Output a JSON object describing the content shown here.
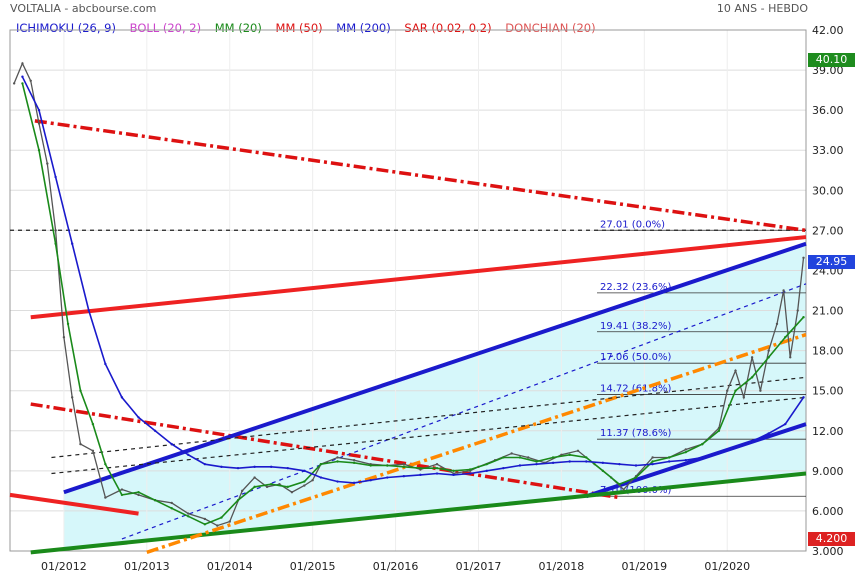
{
  "header": {
    "title": "VOLTALIA - abcbourse.com",
    "period": "10 ANS - HEBDO"
  },
  "legend": [
    {
      "label": "ICHIMOKU (26, 9)",
      "color": "#1a1acc"
    },
    {
      "label": "BOLL (20, 2)",
      "color": "#cc44cc"
    },
    {
      "label": "MM (20)",
      "color": "#1a8a1a"
    },
    {
      "label": "MM (50)",
      "color": "#dd1111"
    },
    {
      "label": "MM (200)",
      "color": "#1a1acc"
    },
    {
      "label": "SAR (0.02, 0.2)",
      "color": "#dd1111"
    },
    {
      "label": "DONCHIAN (20)",
      "color": "#dd5555"
    }
  ],
  "price_labels": {
    "high": "40.10",
    "last": "24.95",
    "low": "4.200"
  },
  "chart_data": {
    "type": "line",
    "title": "VOLTALIA - abcbourse.com",
    "period": "10 ANS - HEBDO",
    "y_ticks": [
      "42.00",
      "39.00",
      "36.00",
      "33.00",
      "30.00",
      "27.00",
      "24.00",
      "21.00",
      "18.00",
      "15.00",
      "12.00",
      "9.000",
      "6.000",
      "3.000"
    ],
    "x_ticks": [
      "01/2012",
      "01/2013",
      "01/2014",
      "01/2015",
      "01/2016",
      "01/2017",
      "01/2018",
      "01/2019",
      "01/2020"
    ],
    "ylim": [
      3,
      42
    ],
    "xlim": [
      2011.35,
      2020.95
    ],
    "series": [
      {
        "name": "",
        "values": [
          [
            2011.4,
            38
          ],
          [
            2011.5,
            39.5
          ],
          [
            2011.6,
            38.2
          ],
          [
            2011.7,
            35
          ],
          [
            2011.8,
            32
          ],
          [
            2011.9,
            27
          ],
          [
            2012.0,
            19
          ],
          [
            2012.1,
            14.5
          ],
          [
            2012.2,
            11
          ],
          [
            2012.35,
            10.5
          ],
          [
            2012.5,
            7
          ],
          [
            2012.7,
            7.6
          ],
          [
            2012.9,
            7.2
          ],
          [
            2013.1,
            6.8
          ],
          [
            2013.3,
            6.6
          ],
          [
            2013.5,
            5.8
          ],
          [
            2013.7,
            5.4
          ],
          [
            2013.85,
            4.9
          ],
          [
            2014.0,
            5.2
          ],
          [
            2014.15,
            7.5
          ],
          [
            2014.3,
            8.5
          ],
          [
            2014.45,
            7.8
          ],
          [
            2014.6,
            8
          ],
          [
            2014.75,
            7.4
          ],
          [
            2014.9,
            7.9
          ],
          [
            2015.0,
            8.3
          ],
          [
            2015.1,
            9.5
          ],
          [
            2015.3,
            10
          ],
          [
            2015.5,
            9.8
          ],
          [
            2015.7,
            9.5
          ],
          [
            2015.9,
            9.4
          ],
          [
            2016.1,
            9.5
          ],
          [
            2016.3,
            9.1
          ],
          [
            2016.5,
            9.5
          ],
          [
            2016.7,
            8.8
          ],
          [
            2016.9,
            9
          ],
          [
            2017.0,
            9.3
          ],
          [
            2017.2,
            9.8
          ],
          [
            2017.4,
            10.3
          ],
          [
            2017.6,
            10
          ],
          [
            2017.8,
            9.6
          ],
          [
            2018.0,
            10.2
          ],
          [
            2018.2,
            10.5
          ],
          [
            2018.4,
            9.5
          ],
          [
            2018.6,
            8.5
          ],
          [
            2018.75,
            7.6
          ],
          [
            2018.9,
            8.6
          ],
          [
            2019.1,
            10
          ],
          [
            2019.3,
            10
          ],
          [
            2019.5,
            10.6
          ],
          [
            2019.7,
            11
          ],
          [
            2019.9,
            12.2
          ],
          [
            2020.0,
            15
          ],
          [
            2020.1,
            16.5
          ],
          [
            2020.2,
            14.5
          ],
          [
            2020.3,
            17.5
          ],
          [
            2020.4,
            15
          ],
          [
            2020.5,
            18
          ],
          [
            2020.6,
            20
          ],
          [
            2020.68,
            22.5
          ],
          [
            2020.76,
            17.5
          ],
          [
            2020.85,
            21
          ],
          [
            2020.92,
            24.95
          ]
        ],
        "color": "#555555"
      },
      {
        "name": "",
        "values": [
          [
            2011.5,
            38
          ],
          [
            2011.7,
            33
          ],
          [
            2011.9,
            26
          ],
          [
            2012.05,
            20
          ],
          [
            2012.2,
            15
          ],
          [
            2012.35,
            12.5
          ],
          [
            2012.5,
            9.5
          ],
          [
            2012.7,
            7.2
          ],
          [
            2012.9,
            7.4
          ],
          [
            2013.1,
            6.8
          ],
          [
            2013.3,
            6.2
          ],
          [
            2013.5,
            5.6
          ],
          [
            2013.7,
            5.0
          ],
          [
            2013.9,
            5.5
          ],
          [
            2014.1,
            6.8
          ],
          [
            2014.3,
            7.8
          ],
          [
            2014.5,
            8
          ],
          [
            2014.7,
            7.8
          ],
          [
            2014.9,
            8.2
          ],
          [
            2015.1,
            9.5
          ],
          [
            2015.3,
            9.7
          ],
          [
            2015.5,
            9.6
          ],
          [
            2015.7,
            9.4
          ],
          [
            2015.9,
            9.4
          ],
          [
            2016.1,
            9.3
          ],
          [
            2016.3,
            9.2
          ],
          [
            2016.5,
            9.2
          ],
          [
            2016.7,
            9
          ],
          [
            2016.9,
            9.1
          ],
          [
            2017.1,
            9.5
          ],
          [
            2017.3,
            10
          ],
          [
            2017.5,
            10
          ],
          [
            2017.7,
            9.7
          ],
          [
            2017.9,
            10
          ],
          [
            2018.1,
            10.2
          ],
          [
            2018.3,
            10
          ],
          [
            2018.5,
            9
          ],
          [
            2018.7,
            8
          ],
          [
            2018.9,
            8.5
          ],
          [
            2019.1,
            9.7
          ],
          [
            2019.3,
            10
          ],
          [
            2019.5,
            10.4
          ],
          [
            2019.7,
            11
          ],
          [
            2019.9,
            12
          ],
          [
            2020.1,
            15
          ],
          [
            2020.3,
            16
          ],
          [
            2020.5,
            17.5
          ],
          [
            2020.7,
            19
          ],
          [
            2020.92,
            20.5
          ]
        ],
        "color": "#1a8a1a"
      },
      {
        "name": "",
        "values": [
          [
            2011.5,
            38.5
          ],
          [
            2011.7,
            36
          ],
          [
            2011.9,
            31
          ],
          [
            2012.1,
            26
          ],
          [
            2012.3,
            21
          ],
          [
            2012.5,
            17
          ],
          [
            2012.7,
            14.5
          ],
          [
            2012.9,
            13
          ],
          [
            2013.1,
            12
          ],
          [
            2013.3,
            11
          ],
          [
            2013.5,
            10.2
          ],
          [
            2013.7,
            9.5
          ],
          [
            2013.9,
            9.3
          ],
          [
            2014.1,
            9.2
          ],
          [
            2014.3,
            9.3
          ],
          [
            2014.5,
            9.3
          ],
          [
            2014.7,
            9.2
          ],
          [
            2014.9,
            9
          ],
          [
            2015.1,
            8.5
          ],
          [
            2015.3,
            8.2
          ],
          [
            2015.5,
            8.1
          ],
          [
            2015.7,
            8.3
          ],
          [
            2015.9,
            8.5
          ],
          [
            2016.1,
            8.6
          ],
          [
            2016.3,
            8.7
          ],
          [
            2016.5,
            8.8
          ],
          [
            2016.7,
            8.7
          ],
          [
            2016.9,
            8.8
          ],
          [
            2017.1,
            9
          ],
          [
            2017.3,
            9.2
          ],
          [
            2017.5,
            9.4
          ],
          [
            2017.7,
            9.5
          ],
          [
            2017.9,
            9.6
          ],
          [
            2018.1,
            9.7
          ],
          [
            2018.3,
            9.7
          ],
          [
            2018.5,
            9.6
          ],
          [
            2018.7,
            9.5
          ],
          [
            2018.9,
            9.4
          ],
          [
            2019.1,
            9.5
          ],
          [
            2019.3,
            9.7
          ],
          [
            2019.5,
            9.8
          ],
          [
            2019.7,
            10
          ],
          [
            2019.9,
            10.3
          ],
          [
            2020.1,
            10.8
          ],
          [
            2020.3,
            11.2
          ],
          [
            2020.5,
            11.8
          ],
          [
            2020.7,
            12.5
          ],
          [
            2020.92,
            14.5
          ]
        ],
        "color": "#1a1acc"
      }
    ],
    "levels": [
      {
        "value": 27.01,
        "label": "27.01  (0.0%)"
      },
      {
        "value": 22.32,
        "label": "22.32  (23.6%)"
      },
      {
        "value": 19.41,
        "label": "19.41  (38.2%)"
      },
      {
        "value": 17.06,
        "label": "17.06  (50.0%)"
      },
      {
        "value": 14.72,
        "label": "14.72  (61.8%)"
      },
      {
        "value": 11.37,
        "label": "11.37  (78.6%)"
      },
      {
        "value": 7.1,
        "label": "7.10  (100.0%)"
      }
    ],
    "trendlines": [
      {
        "from": [
          2011.65,
          35.2
        ],
        "to": [
          2020.95,
          27.0
        ],
        "color": "#dd1111",
        "style": "dashdot"
      },
      {
        "from": [
          2011.6,
          20.5
        ],
        "to": [
          2020.95,
          26.5
        ],
        "color": "#ee2222",
        "style": "solid"
      },
      {
        "from": [
          2011.35,
          7.2
        ],
        "to": [
          2012.9,
          5.8
        ],
        "color": "#ee2222",
        "style": "solid"
      },
      {
        "from": [
          2011.6,
          14.0
        ],
        "to": [
          2018.7,
          7.0
        ],
        "color": "#dd1111",
        "style": "dashdot"
      },
      {
        "from": [
          2012.0,
          7.4
        ],
        "to": [
          2020.95,
          26.0
        ],
        "color": "#1a1acc",
        "style": "solid"
      },
      {
        "from": [
          2018.3,
          7.1
        ],
        "to": [
          2020.95,
          12.5
        ],
        "color": "#1a1acc",
        "style": "solid"
      },
      {
        "from": [
          2011.6,
          2.9
        ],
        "to": [
          2020.95,
          8.8
        ],
        "color": "#1a8a1a",
        "style": "solid"
      },
      {
        "from": [
          2013.0,
          2.9
        ],
        "to": [
          2020.95,
          19.2
        ],
        "color": "#ff8800",
        "style": "dashdot"
      },
      {
        "from": [
          2012.7,
          3.9
        ],
        "to": [
          2020.95,
          23.0
        ],
        "color": "#1a1acc",
        "style": "dashed"
      },
      {
        "from": [
          2011.85,
          10.0
        ],
        "to": [
          2020.95,
          16.0
        ],
        "color": "#222222",
        "style": "dashed"
      },
      {
        "from": [
          2011.85,
          8.8
        ],
        "to": [
          2020.95,
          14.5
        ],
        "color": "#222222",
        "style": "dashed"
      }
    ],
    "reference_line": {
      "value": 27.01,
      "style": "dashed"
    },
    "grid": true,
    "legend_position": "top-left"
  }
}
